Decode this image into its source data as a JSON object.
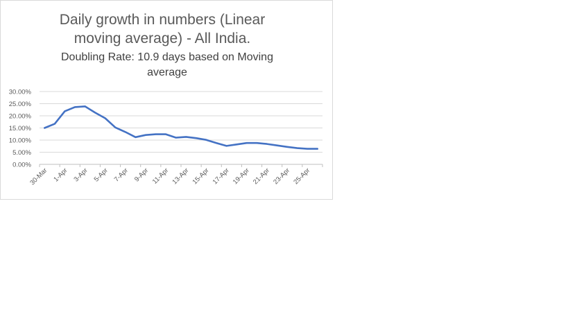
{
  "chart_data": {
    "type": "line",
    "title": "Daily growth in numbers (Linear moving average) - All India.",
    "title_lines": [
      "Daily growth in numbers (Linear",
      "moving average) - All India."
    ],
    "subtitle": "Doubling Rate:  10.9 days based on Moving average",
    "subtitle_lines": [
      "Doubling Rate:  10.9 days based on Moving",
      "average"
    ],
    "xlabel": "",
    "ylabel": "",
    "ylim": [
      0,
      30
    ],
    "y_ticks": [
      "0.00%",
      "5.00%",
      "10.00%",
      "15.00%",
      "20.00%",
      "25.00%",
      "30.00%"
    ],
    "x_tick_labels": [
      "30-Mar",
      "1-Apr",
      "3-Apr",
      "5-Apr",
      "7-Apr",
      "9-Apr",
      "11-Apr",
      "13-Apr",
      "15-Apr",
      "17-Apr",
      "19-Apr",
      "21-Apr",
      "23-Apr",
      "25-Apr"
    ],
    "categories": [
      "30-Mar",
      "31-Mar",
      "1-Apr",
      "2-Apr",
      "3-Apr",
      "4-Apr",
      "5-Apr",
      "6-Apr",
      "7-Apr",
      "8-Apr",
      "9-Apr",
      "10-Apr",
      "11-Apr",
      "12-Apr",
      "13-Apr",
      "14-Apr",
      "15-Apr",
      "16-Apr",
      "17-Apr",
      "18-Apr",
      "19-Apr",
      "20-Apr",
      "21-Apr",
      "22-Apr",
      "23-Apr",
      "24-Apr",
      "25-Apr",
      "26-Apr"
    ],
    "series": [
      {
        "values": [
          15.0,
          16.7,
          21.9,
          23.6,
          23.9,
          21.3,
          19.0,
          15.2,
          13.3,
          11.2,
          12.1,
          12.4,
          12.4,
          11.0,
          11.3,
          10.8,
          10.1,
          8.8,
          7.6,
          8.2,
          8.8,
          8.8,
          8.4,
          7.8,
          7.2,
          6.7,
          6.4,
          6.4
        ],
        "color": "#4472c4"
      }
    ],
    "grid": true,
    "legend": "none"
  }
}
